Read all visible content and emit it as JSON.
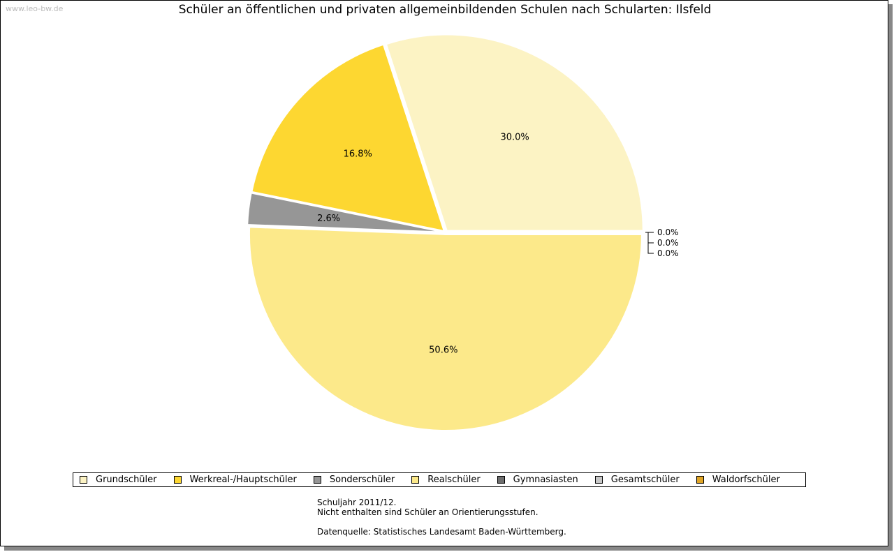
{
  "watermark": "www.leo-bw.de",
  "chart_data": {
    "type": "pie",
    "title": "Schüler an öffentlichen und privaten allgemeinbildenden Schulen nach Schularten: Ilsfeld",
    "slices": [
      {
        "name": "Grundschüler",
        "value": 30.0,
        "label": "30.0%",
        "color": "#FCF3C4"
      },
      {
        "name": "Werkreal-/Hauptschüler",
        "value": 16.8,
        "label": "16.8%",
        "color": "#FDD731"
      },
      {
        "name": "Sonderschüler",
        "value": 2.6,
        "label": "2.6%",
        "color": "#969696"
      },
      {
        "name": "Realschüler",
        "value": 50.6,
        "label": "50.6%",
        "color": "#FCE98A"
      },
      {
        "name": "Gymnasiasten",
        "value": 0.0,
        "label": "0.0%",
        "color": "#6E6E6E"
      },
      {
        "name": "Gesamtschüler",
        "value": 0.0,
        "label": "0.0%",
        "color": "#C8C8C8"
      },
      {
        "name": "Waldorfschüler",
        "value": 0.0,
        "label": "0.0%",
        "color": "#E0A526"
      }
    ],
    "legend_position": "bottom"
  },
  "notes": [
    "Schuljahr 2011/12.",
    "Nicht enthalten sind Schüler an Orientierungsstufen.",
    "",
    "Datenquelle: Statistisches Landesamt Baden-Württemberg."
  ]
}
